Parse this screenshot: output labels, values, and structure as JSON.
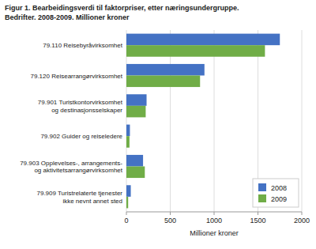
{
  "chart_data": {
    "type": "bar",
    "orientation": "horizontal",
    "title": "Figur 1. Bearbeidingsverdi til faktorpriser, etter næringsundergruppe.",
    "subtitle": "Bedrifter. 2008-2009. Millioner kroner",
    "categories": [
      "79.110 Reisebyråvirksomhet",
      "79.120 Reisearrangørvirksomhet",
      "79.901 Turistkontorvirksomhet\nog destinasjonsselskaper",
      "79.902 Guider og reiseledere",
      "79.903 Opplevelses-, arrangements-\nog aktivitetsarrangørvirksomhet",
      "79.909 Turistrelaterte tjenester\nikke nevnt annet sted"
    ],
    "series": [
      {
        "name": "2008",
        "color": "#4472C4",
        "values": [
          1750,
          890,
          230,
          40,
          190,
          50
        ]
      },
      {
        "name": "2009",
        "color": "#70AD47",
        "values": [
          1580,
          840,
          220,
          35,
          210,
          20
        ]
      }
    ],
    "xlabel": "Millioner kroner",
    "xlim": [
      0,
      2000
    ],
    "xticks": [
      0,
      500,
      1000,
      1500,
      2000
    ],
    "grid": true,
    "legend": "lower right"
  }
}
